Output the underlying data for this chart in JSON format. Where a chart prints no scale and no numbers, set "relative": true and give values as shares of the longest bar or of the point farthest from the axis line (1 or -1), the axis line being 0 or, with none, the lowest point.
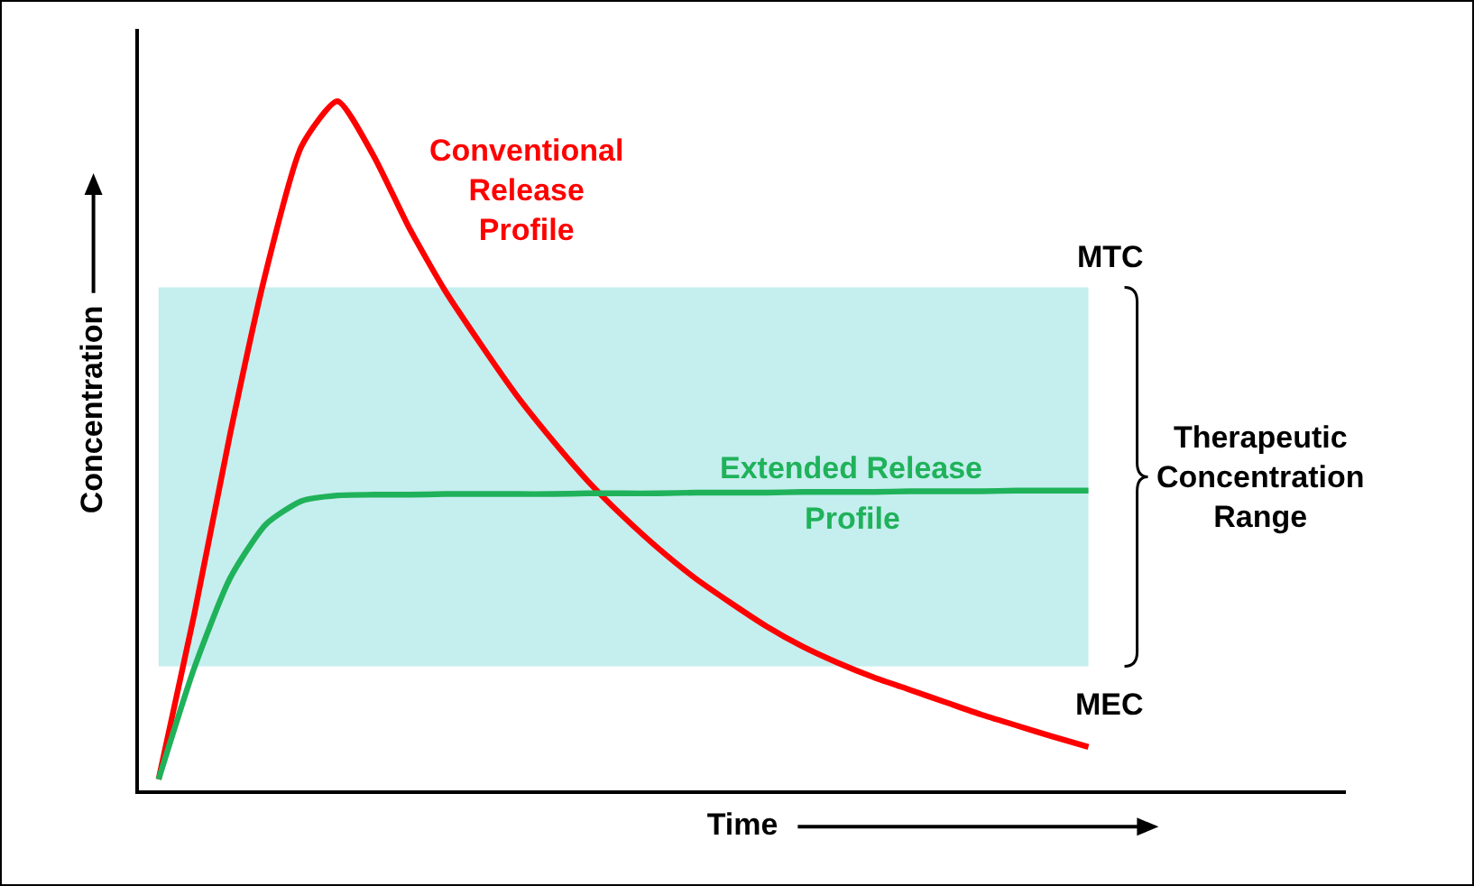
{
  "chart_data": {
    "type": "line",
    "relative": true,
    "xlabel": "Time",
    "ylabel": "Concentration",
    "categories": [
      null,
      null,
      null,
      null,
      null,
      null,
      null,
      null,
      null,
      null,
      null,
      null,
      null,
      null,
      null,
      null,
      null,
      null,
      null,
      null,
      null,
      null,
      null,
      null,
      null,
      null,
      null
    ],
    "series": [
      {
        "name": "Conventional Release Profile",
        "color": "#ff0000",
        "values": [
          0.016,
          0.256,
          0.517,
          0.752,
          0.935,
          1,
          0.922,
          0.817,
          0.726,
          0.648,
          0.574,
          0.509,
          0.449,
          0.397,
          0.35,
          0.308,
          0.272,
          0.238,
          0.209,
          0.185,
          0.164,
          0.146,
          0.128,
          0.11,
          0.094,
          0.078,
          0.063
        ]
      },
      {
        "name": "Extended Release Profile",
        "color": "#1fb25a",
        "values": [
          0.016,
          0.178,
          0.308,
          0.386,
          0.42,
          0.428,
          0.429,
          0.429,
          0.43,
          0.43,
          0.43,
          0.43,
          0.431,
          0.431,
          0.431,
          0.432,
          0.432,
          0.432,
          0.433,
          0.433,
          0.433,
          0.434,
          0.434,
          0.434,
          0.435,
          0.435,
          0.435
        ]
      }
    ],
    "bands": [
      {
        "axis": "y",
        "from": 0.18,
        "to": 0.73,
        "label": "Therapeutic Concentration Range",
        "color": "#c5eeee"
      }
    ],
    "annotations": [
      "MTC",
      "MEC"
    ],
    "line_style": "solid",
    "grid": false,
    "legend": false
  }
}
